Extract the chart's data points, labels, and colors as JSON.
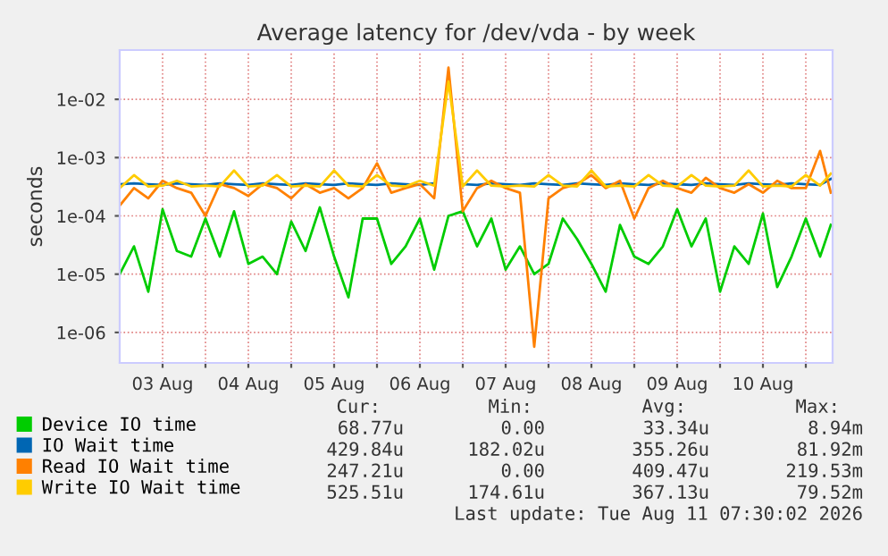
{
  "chart_data": {
    "type": "line",
    "title": "Average latency for /dev/vda - by week",
    "ylabel": "seconds",
    "log": "y",
    "grid": true,
    "legend": "bottom",
    "xlim": [
      "2026-08-03T00:00",
      "2026-08-11T07:30"
    ],
    "xticks": [
      {
        "value": "2026-08-03T12:00",
        "label": "03 Aug"
      },
      {
        "value": "2026-08-04T12:00",
        "label": "04 Aug"
      },
      {
        "value": "2026-08-05T12:00",
        "label": "05 Aug"
      },
      {
        "value": "2026-08-06T12:00",
        "label": "06 Aug"
      },
      {
        "value": "2026-08-07T12:00",
        "label": "07 Aug"
      },
      {
        "value": "2026-08-08T12:00",
        "label": "08 Aug"
      },
      {
        "value": "2026-08-09T12:00",
        "label": "09 Aug"
      },
      {
        "value": "2026-08-10T12:00",
        "label": "10 Aug"
      },
      {
        "value": "2026-08-04T00:00",
        "label": null
      },
      {
        "value": "2026-08-05T00:00",
        "label": null
      },
      {
        "value": "2026-08-06T00:00",
        "label": null
      },
      {
        "value": "2026-08-07T00:00",
        "label": null
      },
      {
        "value": "2026-08-08T00:00",
        "label": null
      },
      {
        "value": "2026-08-09T00:00",
        "label": null
      },
      {
        "value": "2026-08-10T00:00",
        "label": null
      },
      {
        "value": "2026-08-11T00:00",
        "label": null
      }
    ],
    "ylim": [
      3e-07,
      0.07
    ],
    "yticks": [
      {
        "value": 1e-06,
        "label": "1e-06"
      },
      {
        "value": 1e-05,
        "label": "1e-05"
      },
      {
        "value": 0.0001,
        "label": "1e-04"
      },
      {
        "value": 0.001,
        "label": "1e-03"
      },
      {
        "value": 0.01,
        "label": "1e-02"
      }
    ],
    "x": [
      "2026-08-03T00:00",
      "2026-08-03T04:00",
      "2026-08-03T08:00",
      "2026-08-03T12:00",
      "2026-08-03T16:00",
      "2026-08-03T20:00",
      "2026-08-04T00:00",
      "2026-08-04T04:00",
      "2026-08-04T08:00",
      "2026-08-04T12:00",
      "2026-08-04T16:00",
      "2026-08-04T20:00",
      "2026-08-05T00:00",
      "2026-08-05T04:00",
      "2026-08-05T08:00",
      "2026-08-05T12:00",
      "2026-08-05T16:00",
      "2026-08-05T20:00",
      "2026-08-06T00:00",
      "2026-08-06T04:00",
      "2026-08-06T08:00",
      "2026-08-06T12:00",
      "2026-08-06T16:00",
      "2026-08-06T20:00",
      "2026-08-07T00:00",
      "2026-08-07T04:00",
      "2026-08-07T08:00",
      "2026-08-07T12:00",
      "2026-08-07T16:00",
      "2026-08-07T20:00",
      "2026-08-08T00:00",
      "2026-08-08T04:00",
      "2026-08-08T08:00",
      "2026-08-08T12:00",
      "2026-08-08T16:00",
      "2026-08-08T20:00",
      "2026-08-09T00:00",
      "2026-08-09T04:00",
      "2026-08-09T08:00",
      "2026-08-09T12:00",
      "2026-08-09T16:00",
      "2026-08-09T20:00",
      "2026-08-10T00:00",
      "2026-08-10T04:00",
      "2026-08-10T08:00",
      "2026-08-10T12:00",
      "2026-08-10T16:00",
      "2026-08-10T20:00",
      "2026-08-11T00:00",
      "2026-08-11T04:00",
      "2026-08-11T07:00"
    ],
    "series": [
      {
        "name": "Device IO time",
        "color": "#00cc00",
        "values": [
          1e-05,
          3e-05,
          5e-06,
          0.00013,
          2.5e-05,
          2e-05,
          9e-05,
          2e-05,
          0.00012,
          1.5e-05,
          2e-05,
          1e-05,
          8e-05,
          2.5e-05,
          0.00014,
          2e-05,
          4e-06,
          9e-05,
          9e-05,
          1.5e-05,
          3e-05,
          9e-05,
          1.2e-05,
          0.0001,
          0.00012,
          3e-05,
          9e-05,
          1.2e-05,
          3e-05,
          1e-05,
          1.5e-05,
          9e-05,
          4e-05,
          1.5e-05,
          5e-06,
          7e-05,
          2e-05,
          1.5e-05,
          3e-05,
          0.00013,
          3e-05,
          9e-05,
          5e-06,
          3e-05,
          1.5e-05,
          0.00011,
          6e-06,
          2e-05,
          9e-05,
          2e-05,
          7e-05
        ]
      },
      {
        "name": "IO Wait time",
        "color": "#0066b3",
        "values": [
          0.00035,
          0.00036,
          0.00035,
          0.00034,
          0.00036,
          0.00035,
          0.00034,
          0.00036,
          0.00035,
          0.00034,
          0.00036,
          0.00035,
          0.00034,
          0.00036,
          0.00035,
          0.00034,
          0.00036,
          0.00035,
          0.00034,
          0.00036,
          0.00035,
          0.00034,
          0.00036,
          null,
          0.00035,
          0.00034,
          0.00036,
          0.00035,
          0.00034,
          0.00036,
          0.00035,
          0.00034,
          0.00036,
          0.00035,
          0.00034,
          0.00036,
          0.00035,
          0.00034,
          0.00036,
          0.00035,
          0.00034,
          0.00036,
          0.00035,
          0.00034,
          0.00036,
          0.00035,
          0.00034,
          0.00036,
          0.00035,
          0.00034,
          0.00043
        ]
      },
      {
        "name": "Read IO Wait time",
        "color": "#ff8000",
        "values": [
          0.00015,
          0.0003,
          0.0002,
          0.0004,
          0.0003,
          0.00025,
          0.0001,
          0.00035,
          0.0003,
          0.00022,
          0.00035,
          0.0003,
          0.0002,
          0.00035,
          0.00025,
          0.0003,
          0.0002,
          0.0003,
          0.0008,
          0.00025,
          0.0003,
          0.00035,
          0.0002,
          0.035,
          0.00012,
          0.0003,
          0.0004,
          0.0003,
          0.00025,
          5.7e-07,
          0.0002,
          0.0003,
          0.00035,
          0.0005,
          0.0003,
          0.0004,
          9e-05,
          0.0003,
          0.0004,
          0.0003,
          0.00025,
          0.00045,
          0.0003,
          0.00025,
          0.00035,
          0.00025,
          0.0004,
          0.0003,
          0.0003,
          0.0013,
          0.00025
        ]
      },
      {
        "name": "Write IO Wait time",
        "color": "#ffcc00",
        "values": [
          0.0003,
          0.0005,
          0.00032,
          0.00033,
          0.0004,
          0.00032,
          0.00033,
          0.00032,
          0.0006,
          0.00032,
          0.00033,
          0.0005,
          0.00032,
          0.00033,
          0.00032,
          0.0006,
          0.00033,
          0.00032,
          0.0005,
          0.00033,
          0.00032,
          0.0004,
          0.00033,
          0.02,
          0.00032,
          0.0006,
          0.00033,
          0.00032,
          0.00033,
          0.00032,
          0.0005,
          0.00033,
          0.00032,
          0.0006,
          0.00032,
          0.00033,
          0.00032,
          0.0005,
          0.00033,
          0.00032,
          0.0005,
          0.00033,
          0.00032,
          0.00033,
          0.0006,
          0.00032,
          0.00033,
          0.00032,
          0.0005,
          0.00033,
          0.00053
        ]
      }
    ],
    "annotations": [
      "Cur:",
      "Min:",
      "Avg:",
      "Max:",
      "68.77u",
      "0.00",
      "33.34u",
      "8.94m",
      "429.84u",
      "182.02u",
      "355.26u",
      "81.92m",
      "247.21u",
      "0.00",
      "409.47u",
      "219.53m",
      "525.51u",
      "174.61u",
      "367.13u",
      "79.52m",
      "Last update: Tue Aug 11 07:30:02 2026"
    ]
  }
}
